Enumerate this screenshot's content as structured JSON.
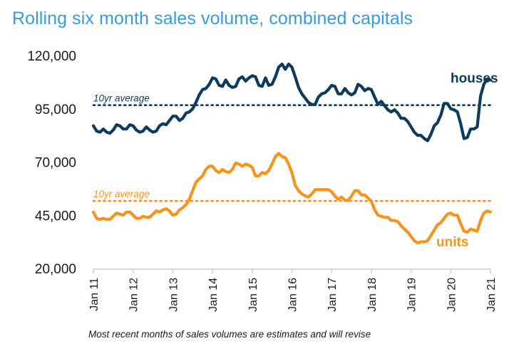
{
  "chart_data": {
    "type": "line",
    "title": "Rolling six month sales volume, combined capitals",
    "xlabel": "",
    "ylabel": "",
    "ylim": [
      20000,
      120000
    ],
    "yticks": [
      20000,
      45000,
      70000,
      95000,
      120000
    ],
    "ytick_labels": [
      "20,000",
      "45,000",
      "70,000",
      "95,000",
      "120,000"
    ],
    "x_start": "Jan 11",
    "x_period": "monthly",
    "xtick_labels": [
      "Jan 11",
      "Jan 12",
      "Jan 13",
      "Jan 14",
      "Jan 15",
      "Jan 16",
      "Jan 17",
      "Jan 18",
      "Jan 19",
      "Jan 20",
      "Jan 21"
    ],
    "grid": false,
    "series": [
      {
        "name": "houses",
        "color": "#0d3b5e",
        "average_label": "10yr average",
        "average": 96700,
        "values": [
          87000,
          84500,
          84000,
          85500,
          84000,
          83500,
          85000,
          87500,
          87000,
          85500,
          85500,
          87500,
          87000,
          85000,
          84000,
          84500,
          86500,
          85000,
          84000,
          84500,
          87000,
          88000,
          87500,
          89500,
          91500,
          91500,
          89500,
          90500,
          93000,
          93500,
          95000,
          98000,
          101500,
          104000,
          104500,
          106500,
          109500,
          109000,
          106000,
          105500,
          108500,
          106000,
          105000,
          105500,
          109000,
          110000,
          108000,
          109500,
          110500,
          110000,
          106000,
          105500,
          109500,
          106000,
          106500,
          110000,
          114500,
          116000,
          113500,
          116000,
          114500,
          110000,
          105000,
          102000,
          100000,
          98000,
          97000,
          97000,
          100500,
          102000,
          102500,
          104000,
          106000,
          105500,
          102000,
          102000,
          104500,
          102500,
          101500,
          102500,
          106500,
          105500,
          103500,
          104500,
          104000,
          100500,
          97000,
          98500,
          96500,
          94500,
          93500,
          94500,
          93000,
          90500,
          90500,
          89000,
          86500,
          84000,
          82500,
          82500,
          81000,
          80000,
          83000,
          87000,
          88500,
          92000,
          97500,
          97500,
          95000,
          94500,
          93500,
          88000,
          81000,
          81500,
          85500,
          85500,
          86500,
          101000,
          106500,
          109000,
          108500
        ]
      },
      {
        "name": "units",
        "color": "#f7941d",
        "average_label": "10yr average",
        "average": 51700,
        "values": [
          46500,
          43500,
          43000,
          43500,
          43000,
          43000,
          44500,
          46000,
          45500,
          45000,
          46500,
          46500,
          45000,
          43500,
          43500,
          44500,
          44000,
          44000,
          45500,
          47000,
          46500,
          47500,
          48000,
          47000,
          45000,
          45500,
          47500,
          48500,
          50000,
          52500,
          56500,
          60500,
          62000,
          63500,
          66500,
          68000,
          68000,
          66000,
          65000,
          66500,
          65500,
          65000,
          66500,
          69500,
          69000,
          68000,
          69000,
          68500,
          67500,
          63500,
          63500,
          65000,
          64500,
          66000,
          69000,
          72500,
          74000,
          72500,
          72000,
          69000,
          65000,
          59000,
          56500,
          55000,
          54000,
          53500,
          55000,
          57000,
          57000,
          57000,
          57000,
          57000,
          56000,
          54000,
          52500,
          53500,
          52000,
          52000,
          54000,
          56500,
          56500,
          54500,
          54500,
          53000,
          51500,
          47500,
          45000,
          44500,
          44000,
          44000,
          42500,
          42500,
          42000,
          40000,
          38500,
          37000,
          35000,
          33000,
          32000,
          32500,
          32500,
          33000,
          35500,
          38000,
          40500,
          41500,
          43500,
          45500,
          46000,
          45000,
          45000,
          41000,
          37500,
          37000,
          38500,
          38000,
          37500,
          42500,
          46000,
          47000,
          46500
        ]
      }
    ],
    "annotations": [
      "houses",
      "units",
      "10yr average",
      "10yr average"
    ]
  },
  "footnote": "Most recent months of sales volumes are estimates and will revise"
}
